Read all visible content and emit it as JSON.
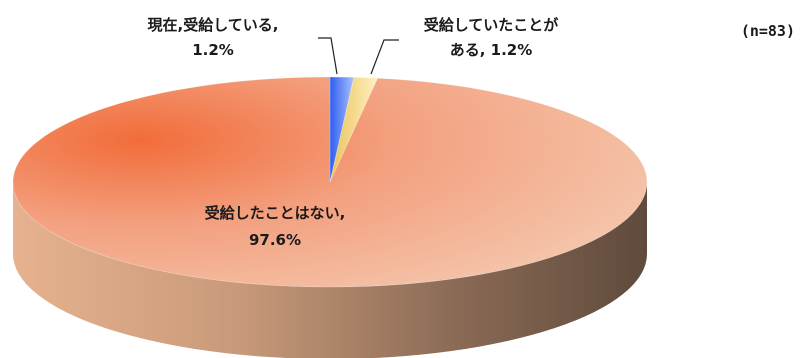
{
  "sample_note": "(n=83)",
  "chart_data": {
    "type": "pie",
    "style": "3d",
    "categories": [
      "現在、受給している",
      "受給していたことがある",
      "受給したことはない"
    ],
    "values": [
      1.2,
      1.2,
      97.6
    ],
    "unit": "%",
    "colors": [
      "#4e7cf2",
      "#f0d27a",
      "#f27a50"
    ],
    "slices": [
      {
        "label_line1": "現在,受給している,",
        "label_line2": "1.2%"
      },
      {
        "label_line1": "受給していたことが",
        "label_line2": "ある, 1.2%"
      },
      {
        "label_line1": "受給したことはない,",
        "label_line2": "97.6%"
      }
    ]
  }
}
